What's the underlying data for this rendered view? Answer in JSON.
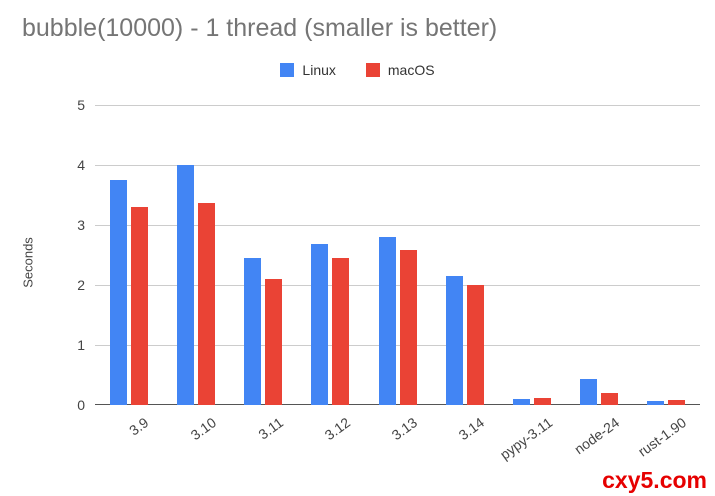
{
  "chart_data": {
    "type": "bar",
    "title": "bubble(10000) - 1 thread (smaller is better)",
    "categories": [
      "3.9",
      "3.10",
      "3.11",
      "3.12",
      "3.13",
      "3.14",
      "pypy-3.11",
      "node-24",
      "rust-1.90"
    ],
    "series": [
      {
        "name": "Linux",
        "color": "#4285F4",
        "values": [
          3.75,
          4.0,
          2.45,
          2.68,
          2.8,
          2.15,
          0.1,
          0.43,
          0.06
        ]
      },
      {
        "name": "macOS",
        "color": "#EA4335",
        "values": [
          3.3,
          3.37,
          2.1,
          2.45,
          2.58,
          2.0,
          0.12,
          0.2,
          0.08
        ]
      }
    ],
    "xlabel": "",
    "ylabel": "Seconds",
    "ylim": [
      0,
      5
    ],
    "yticks": [
      0,
      1,
      2,
      3,
      4,
      5
    ],
    "grid": true,
    "legend_position": "top"
  },
  "watermark": {
    "text": "cxy5.com"
  }
}
